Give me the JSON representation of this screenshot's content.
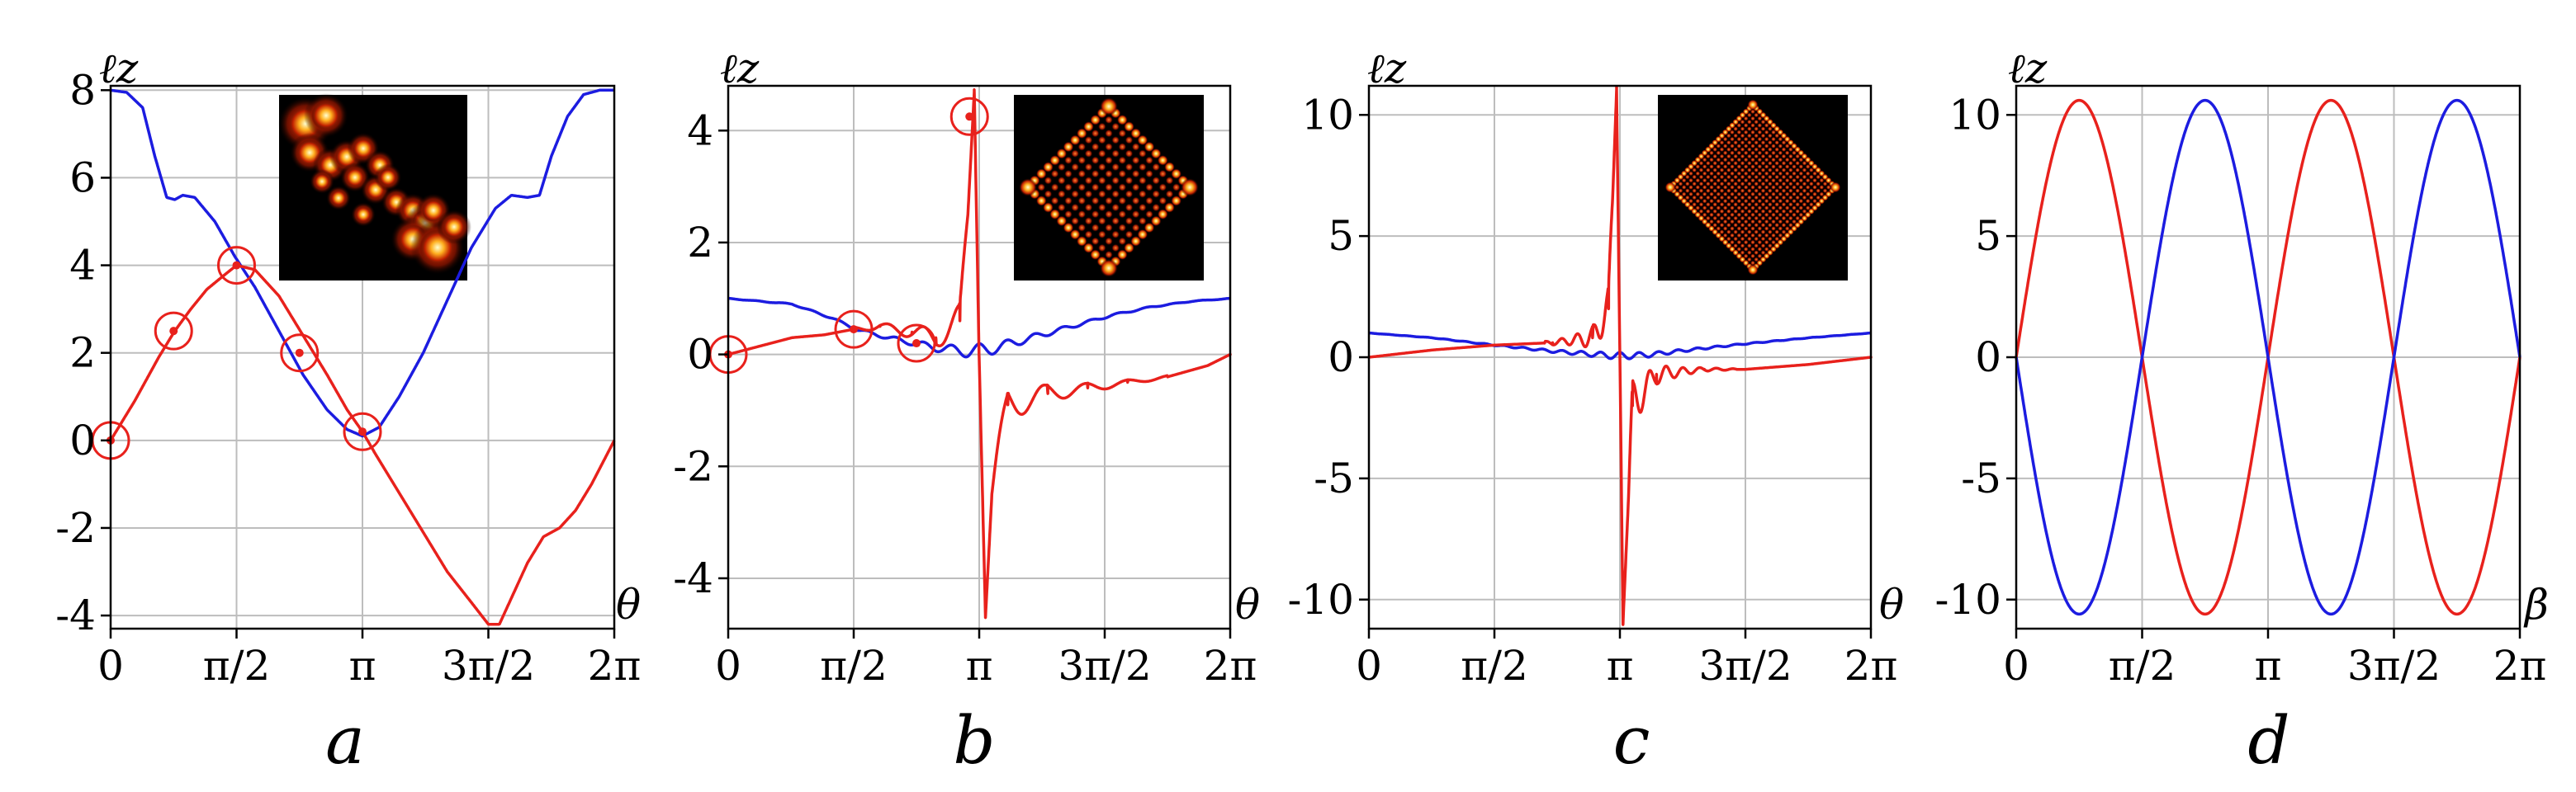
{
  "colors": {
    "red": "#e8211c",
    "blue": "#1c1ce0",
    "grid": "#bdbdbd",
    "inset_bg": "#000000"
  },
  "chart_data": [
    {
      "panel": "a",
      "type": "line",
      "ylabel": "ℓz",
      "xlabel": "θ",
      "xlim": [
        0,
        6.2832
      ],
      "ylim": [
        -4.3,
        8.1
      ],
      "x_ticks": [
        0,
        1.5708,
        3.1416,
        4.7124,
        6.2832
      ],
      "x_tick_labels": [
        "0",
        "π/2",
        "π",
        "3π/2",
        "2π"
      ],
      "y_ticks": [
        8,
        6,
        4,
        2,
        0,
        -2,
        -4
      ],
      "y_tick_labels": [
        "8",
        "6",
        "4",
        "2",
        "0",
        "-2",
        "-4"
      ],
      "inset": "vortex-pattern-image",
      "series": [
        {
          "name": "blue",
          "color": "#1c1ce0",
          "shape": "curve",
          "points": [
            [
              0,
              8
            ],
            [
              0.2,
              7.95
            ],
            [
              0.4,
              7.6
            ],
            [
              0.55,
              6.5
            ],
            [
              0.7,
              5.55
            ],
            [
              0.8,
              5.5
            ],
            [
              0.9,
              5.6
            ],
            [
              1.05,
              5.55
            ],
            [
              1.3,
              5.0
            ],
            [
              1.55,
              4.2
            ],
            [
              1.8,
              3.5
            ],
            [
              2.1,
              2.5
            ],
            [
              2.4,
              1.5
            ],
            [
              2.7,
              0.7
            ],
            [
              2.95,
              0.25
            ],
            [
              3.1416,
              0.1
            ],
            [
              3.35,
              0.3
            ],
            [
              3.6,
              1.0
            ],
            [
              3.9,
              2.0
            ],
            [
              4.2,
              3.2
            ],
            [
              4.5,
              4.4
            ],
            [
              4.8,
              5.3
            ],
            [
              5.0,
              5.6
            ],
            [
              5.2,
              5.55
            ],
            [
              5.35,
              5.6
            ],
            [
              5.5,
              6.5
            ],
            [
              5.7,
              7.4
            ],
            [
              5.9,
              7.9
            ],
            [
              6.1,
              8.0
            ],
            [
              6.2832,
              8.0
            ]
          ]
        },
        {
          "name": "red",
          "color": "#e8211c",
          "shape": "curve",
          "points": [
            [
              0,
              0
            ],
            [
              0.3,
              0.9
            ],
            [
              0.6,
              1.9
            ],
            [
              0.8,
              2.5
            ],
            [
              1.0,
              3.0
            ],
            [
              1.2,
              3.45
            ],
            [
              1.4,
              3.75
            ],
            [
              1.5708,
              4.0
            ],
            [
              1.8,
              3.9
            ],
            [
              2.1,
              3.3
            ],
            [
              2.4,
              2.4
            ],
            [
              2.7,
              1.5
            ],
            [
              2.95,
              0.7
            ],
            [
              3.1416,
              0.2
            ],
            [
              3.3,
              -0.3
            ],
            [
              3.6,
              -1.2
            ],
            [
              3.9,
              -2.1
            ],
            [
              4.2,
              -3.0
            ],
            [
              4.5,
              -3.7
            ],
            [
              4.7124,
              -4.2
            ],
            [
              4.85,
              -4.2
            ],
            [
              5.0,
              -3.6
            ],
            [
              5.2,
              -2.8
            ],
            [
              5.4,
              -2.2
            ],
            [
              5.6,
              -2.0
            ],
            [
              5.8,
              -1.6
            ],
            [
              6.0,
              -1.0
            ],
            [
              6.2832,
              0.0
            ]
          ]
        }
      ],
      "markers": [
        [
          0,
          0
        ],
        [
          0.7854,
          2.5
        ],
        [
          1.5708,
          4.0
        ],
        [
          2.3562,
          2.0
        ],
        [
          3.1416,
          0.2
        ]
      ]
    },
    {
      "panel": "b",
      "type": "line",
      "ylabel": "ℓz",
      "xlabel": "θ",
      "xlim": [
        0,
        6.2832
      ],
      "ylim": [
        -4.9,
        4.8
      ],
      "x_ticks": [
        0,
        1.5708,
        3.1416,
        4.7124,
        6.2832
      ],
      "x_tick_labels": [
        "0",
        "π/2",
        "π",
        "3π/2",
        "2π"
      ],
      "y_ticks": [
        4,
        2,
        0,
        -2,
        -4
      ],
      "y_tick_labels": [
        "4",
        "2",
        "0",
        "-2",
        "-4"
      ],
      "inset": "diamond-lattice-image-b",
      "series": [
        {
          "name": "blue",
          "color": "#1c1ce0",
          "shape": "waveB",
          "points": [
            [
              0,
              1.0
            ],
            [
              0.8,
              0.9
            ],
            [
              1.3,
              0.65
            ],
            [
              1.6,
              0.45
            ],
            [
              2.0,
              0.3
            ],
            [
              2.6,
              0.12
            ],
            [
              3.0,
              0.05
            ],
            [
              3.3,
              0.1
            ],
            [
              3.8,
              0.3
            ],
            [
              4.3,
              0.5
            ],
            [
              4.8,
              0.7
            ],
            [
              5.3,
              0.85
            ],
            [
              5.8,
              0.95
            ],
            [
              6.2832,
              1.0
            ]
          ]
        },
        {
          "name": "red",
          "color": "#e8211c",
          "shape": "spikeB",
          "points": [
            [
              0,
              0
            ],
            [
              0.4,
              0.15
            ],
            [
              0.8,
              0.3
            ],
            [
              1.2,
              0.35
            ],
            [
              1.5708,
              0.45
            ],
            [
              1.9,
              0.5
            ],
            [
              2.3,
              0.4
            ],
            [
              2.6,
              0.3
            ],
            [
              2.9,
              0.6
            ],
            [
              3.0,
              2.5
            ],
            [
              3.08,
              4.7
            ],
            [
              3.14,
              0.0
            ],
            [
              3.22,
              -4.7
            ],
            [
              3.3,
              -2.5
            ],
            [
              3.5,
              -0.9
            ],
            [
              4.0,
              -0.7
            ],
            [
              4.5,
              -0.6
            ],
            [
              5.0,
              -0.5
            ],
            [
              5.5,
              -0.4
            ],
            [
              6.0,
              -0.2
            ],
            [
              6.2832,
              0.0
            ]
          ]
        }
      ],
      "markers": [
        [
          0,
          0
        ],
        [
          1.5708,
          0.45
        ],
        [
          2.3562,
          0.2
        ],
        [
          3.02,
          4.25
        ]
      ]
    },
    {
      "panel": "c",
      "type": "line",
      "ylabel": "ℓz",
      "xlabel": "θ",
      "xlim": [
        0,
        6.2832
      ],
      "ylim": [
        -11.2,
        11.2
      ],
      "x_ticks": [
        0,
        1.5708,
        3.1416,
        4.7124,
        6.2832
      ],
      "x_tick_labels": [
        "0",
        "π/2",
        "π",
        "3π/2",
        "2π"
      ],
      "y_ticks": [
        10,
        5,
        0,
        -5,
        -10
      ],
      "y_tick_labels": [
        "10",
        "5",
        "0",
        "-5",
        "-10"
      ],
      "inset": "diamond-lattice-image-c",
      "series": [
        {
          "name": "blue",
          "color": "#1c1ce0",
          "shape": "waveC",
          "points": [
            [
              0,
              1.0
            ],
            [
              0.8,
              0.8
            ],
            [
              1.5708,
              0.5
            ],
            [
              2.3,
              0.25
            ],
            [
              2.9,
              0.1
            ],
            [
              3.1416,
              0.05
            ],
            [
              3.5,
              0.1
            ],
            [
              4.0,
              0.3
            ],
            [
              4.7,
              0.55
            ],
            [
              5.5,
              0.8
            ],
            [
              6.2832,
              1.0
            ]
          ]
        },
        {
          "name": "red",
          "color": "#e8211c",
          "shape": "spikeC",
          "points": [
            [
              0,
              0
            ],
            [
              0.8,
              0.3
            ],
            [
              1.5708,
              0.5
            ],
            [
              2.3,
              0.6
            ],
            [
              2.8,
              0.8
            ],
            [
              3.0,
              2.0
            ],
            [
              3.1,
              11.0
            ],
            [
              3.1416,
              0.0
            ],
            [
              3.18,
              -11.0
            ],
            [
              3.3,
              -2.0
            ],
            [
              3.6,
              -0.7
            ],
            [
              4.2,
              -0.5
            ],
            [
              4.7124,
              -0.5
            ],
            [
              5.5,
              -0.3
            ],
            [
              6.2832,
              0.0
            ]
          ]
        }
      ],
      "markers": []
    },
    {
      "panel": "d",
      "type": "line",
      "ylabel": "ℓz",
      "xlabel": "β",
      "xlim": [
        0,
        6.2832
      ],
      "ylim": [
        -11.2,
        11.2
      ],
      "x_ticks": [
        0,
        1.5708,
        3.1416,
        4.7124,
        6.2832
      ],
      "x_tick_labels": [
        "0",
        "π/2",
        "π",
        "3π/2",
        "2π"
      ],
      "y_ticks": [
        10,
        5,
        0,
        -5,
        -10
      ],
      "y_tick_labels": [
        "10",
        "5",
        "0",
        "-5",
        "-10"
      ],
      "series": [
        {
          "name": "red",
          "color": "#e8211c",
          "shape": "sine",
          "amplitude": 10.6,
          "frequency": 2
        },
        {
          "name": "blue",
          "color": "#1c1ce0",
          "shape": "sine",
          "amplitude": -10.6,
          "frequency": 2
        }
      ],
      "markers": []
    }
  ],
  "panel_labels": [
    "a",
    "b",
    "c",
    "d"
  ],
  "axis_symbols": {
    "y": "ℓz",
    "x_theta": "θ",
    "x_beta": "β"
  }
}
